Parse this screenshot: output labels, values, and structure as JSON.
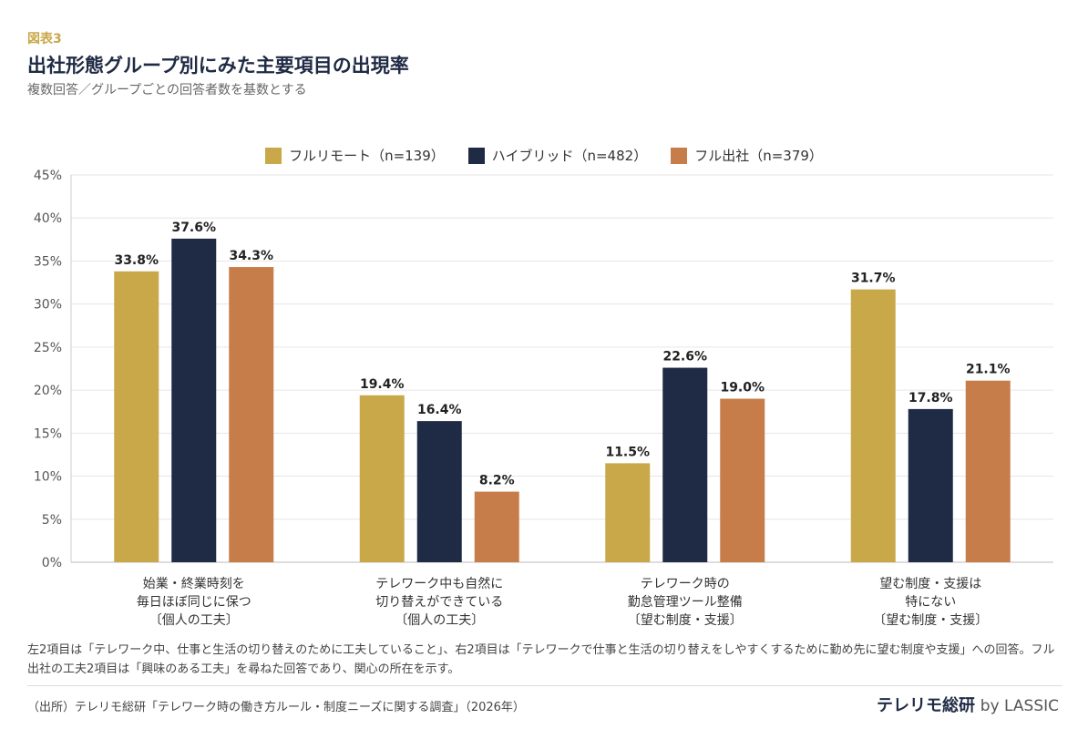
{
  "figure_label": "図表3",
  "title": "出社形態グループ別にみた主要項目の出現率",
  "subtitle": "複数回答／グループごとの回答者数を基数とする",
  "chart_data": {
    "type": "bar",
    "categories": [
      [
        "始業・終業時刻を",
        "毎日ほぼ同じに保つ",
        "〔個人の工夫〕"
      ],
      [
        "テレワーク中も自然に",
        "切り替えができている",
        "〔個人の工夫〕"
      ],
      [
        "テレワーク時の",
        "勤怠管理ツール整備",
        "〔望む制度・支援〕"
      ],
      [
        "望む制度・支援は",
        "特にない",
        "〔望む制度・支援〕"
      ]
    ],
    "series": [
      {
        "name": "フルリモート（n=139）",
        "color": "#c9a84a",
        "values": [
          33.8,
          19.4,
          11.5,
          31.7
        ]
      },
      {
        "name": "ハイブリッド（n=482）",
        "color": "#1f2a44",
        "values": [
          37.6,
          16.4,
          22.6,
          17.8
        ]
      },
      {
        "name": "フル出社（n=379）",
        "color": "#c77d4a",
        "values": [
          34.3,
          8.2,
          19.0,
          21.1
        ]
      }
    ],
    "ylim": [
      0,
      45
    ],
    "yticks": [
      0,
      5,
      10,
      15,
      20,
      25,
      30,
      35,
      40,
      45
    ],
    "tick_suffix": "%",
    "grid": true,
    "legend_position": "top-center"
  },
  "note": "左2項目は「テレワーク中、仕事と生活の切り替えのために工夫していること」、右2項目は「テレワークで仕事と生活の切り替えをしやすくするために勤め先に望む制度や支援」への回答。フル出社の工夫2項目は「興味のある工夫」を尋ねた回答であり、関心の所在を示す。",
  "source": "（出所）テレリモ総研「テレワーク時の働き方ルール・制度ニーズに関する調査」（2026年）",
  "brand": {
    "name": "テレリモ総研",
    "suffix": "by LASSIC"
  }
}
